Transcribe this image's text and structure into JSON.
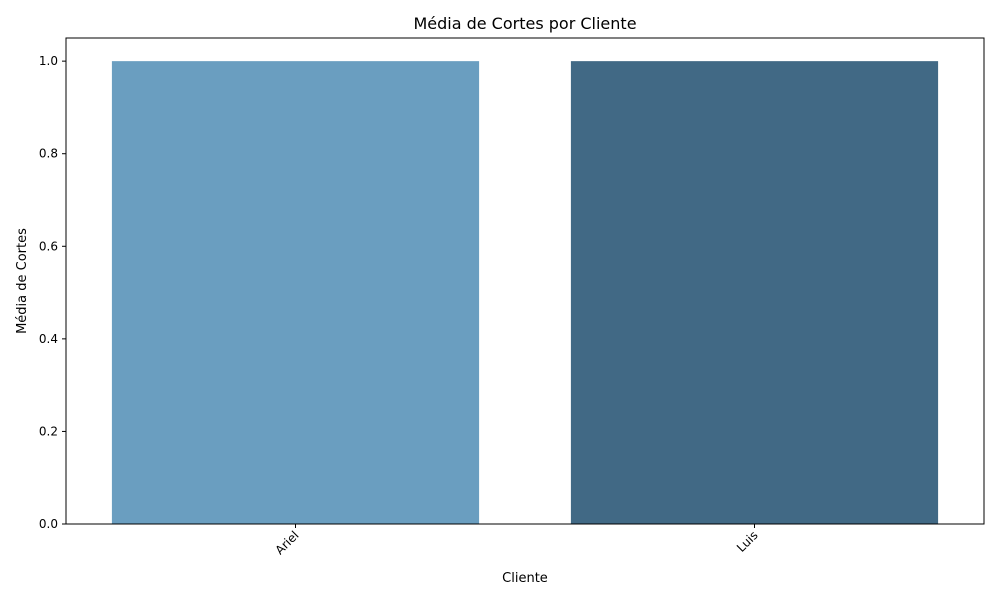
{
  "chart_data": {
    "type": "bar",
    "title": "Média de Cortes por Cliente",
    "xlabel": "Cliente",
    "ylabel": "Média de Cortes",
    "categories": [
      "Ariel",
      "Luis"
    ],
    "values": [
      1.0,
      1.0
    ],
    "bar_colors": [
      "#6a9ec0",
      "#416985"
    ],
    "ylim": [
      0,
      1.05
    ],
    "yticks": [
      "0.0",
      "0.2",
      "0.4",
      "0.6",
      "0.8",
      "1.0"
    ],
    "x_tick_rotation_deg": 45,
    "grid": false,
    "legend": "none"
  }
}
